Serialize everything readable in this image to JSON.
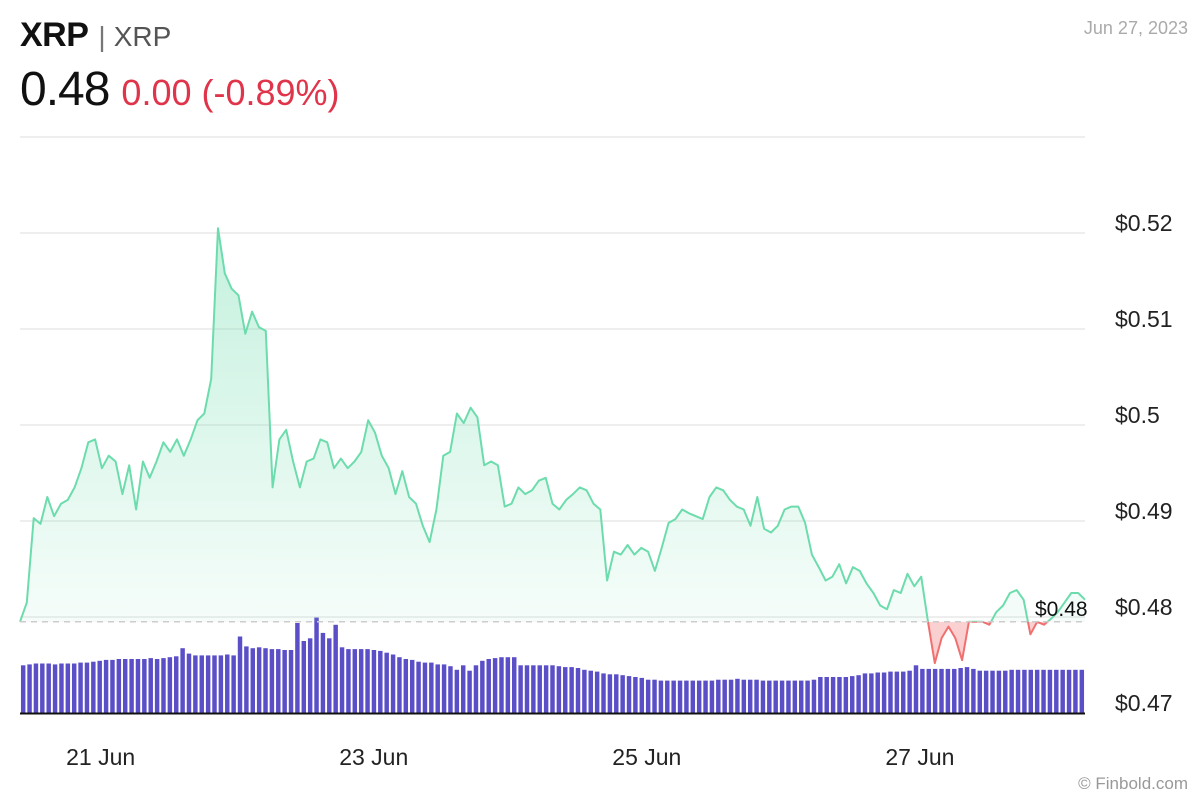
{
  "header": {
    "symbol": "XRP",
    "separator": "|",
    "name": "XRP",
    "price": "0.48",
    "change": "0.00 (-0.89%)",
    "date": "Jun 27, 2023"
  },
  "watermark": "© Finbold.com",
  "colors": {
    "up_line": "#6ddcad",
    "down_line": "#f07070",
    "volume": "#5b4fc8",
    "change_negative": "#e0344b",
    "grid": "#dddddd"
  },
  "chart_data": {
    "type": "line",
    "title": "",
    "xlabel": "",
    "ylabel": "",
    "ylim": [
      0.47,
      0.52
    ],
    "y_ticks": [
      "$0.47",
      "$0.48",
      "$0.49",
      "$0.5",
      "$0.51",
      "$0.52"
    ],
    "y_tick_values": [
      0.47,
      0.48,
      0.49,
      0.5,
      0.51,
      0.52
    ],
    "x_range_days": [
      20.55,
      28.0
    ],
    "x_ticks": [
      {
        "day": 20.8,
        "label": "21 Jun"
      },
      {
        "day": 22.8,
        "label": "23 Jun"
      },
      {
        "day": 24.8,
        "label": "25 Jun"
      },
      {
        "day": 26.8,
        "label": "27 Jun"
      }
    ],
    "reference_price": 0.4795,
    "reference_label": "$0.48",
    "series": [
      {
        "values": [
          [
            20.55,
            0.4795
          ],
          [
            20.6,
            0.4815
          ],
          [
            20.65,
            0.4903
          ],
          [
            20.7,
            0.4897
          ],
          [
            20.75,
            0.4925
          ],
          [
            20.8,
            0.4905
          ],
          [
            20.85,
            0.4918
          ],
          [
            20.9,
            0.4922
          ],
          [
            20.95,
            0.4935
          ],
          [
            21.0,
            0.4955
          ],
          [
            21.05,
            0.4982
          ],
          [
            21.1,
            0.4985
          ],
          [
            21.15,
            0.4955
          ],
          [
            21.2,
            0.4968
          ],
          [
            21.25,
            0.4962
          ],
          [
            21.3,
            0.4928
          ],
          [
            21.35,
            0.4958
          ],
          [
            21.4,
            0.4912
          ],
          [
            21.45,
            0.4962
          ],
          [
            21.5,
            0.4945
          ],
          [
            21.55,
            0.4962
          ],
          [
            21.6,
            0.4982
          ],
          [
            21.65,
            0.4972
          ],
          [
            21.7,
            0.4985
          ],
          [
            21.75,
            0.4968
          ],
          [
            21.8,
            0.4985
          ],
          [
            21.85,
            0.5005
          ],
          [
            21.9,
            0.5012
          ],
          [
            21.95,
            0.5048
          ],
          [
            22.0,
            0.5205
          ],
          [
            22.05,
            0.5158
          ],
          [
            22.1,
            0.5142
          ],
          [
            22.15,
            0.5135
          ],
          [
            22.2,
            0.5095
          ],
          [
            22.25,
            0.5118
          ],
          [
            22.3,
            0.5102
          ],
          [
            22.35,
            0.5098
          ],
          [
            22.4,
            0.4935
          ],
          [
            22.45,
            0.4985
          ],
          [
            22.5,
            0.4995
          ],
          [
            22.55,
            0.4962
          ],
          [
            22.6,
            0.4935
          ],
          [
            22.65,
            0.4962
          ],
          [
            22.7,
            0.4965
          ],
          [
            22.75,
            0.4985
          ],
          [
            22.8,
            0.4982
          ],
          [
            22.85,
            0.4955
          ],
          [
            22.9,
            0.4965
          ],
          [
            22.95,
            0.4955
          ],
          [
            23.0,
            0.4962
          ],
          [
            23.05,
            0.4972
          ],
          [
            23.1,
            0.5005
          ],
          [
            23.15,
            0.4992
          ],
          [
            23.2,
            0.4968
          ],
          [
            23.25,
            0.4955
          ],
          [
            23.3,
            0.4928
          ],
          [
            23.35,
            0.4952
          ],
          [
            23.4,
            0.4925
          ],
          [
            23.45,
            0.4918
          ],
          [
            23.5,
            0.4895
          ],
          [
            23.55,
            0.4878
          ],
          [
            23.6,
            0.4912
          ],
          [
            23.65,
            0.4968
          ],
          [
            23.7,
            0.4972
          ],
          [
            23.75,
            0.5012
          ],
          [
            23.8,
            0.5002
          ],
          [
            23.85,
            0.5018
          ],
          [
            23.9,
            0.5008
          ],
          [
            23.95,
            0.4958
          ],
          [
            24.0,
            0.4962
          ],
          [
            24.05,
            0.4958
          ],
          [
            24.1,
            0.4915
          ],
          [
            24.15,
            0.4918
          ],
          [
            24.2,
            0.4935
          ],
          [
            24.25,
            0.4928
          ],
          [
            24.3,
            0.4932
          ],
          [
            24.35,
            0.4942
          ],
          [
            24.4,
            0.4945
          ],
          [
            24.45,
            0.4918
          ],
          [
            24.5,
            0.4912
          ],
          [
            24.55,
            0.4922
          ],
          [
            24.6,
            0.4928
          ],
          [
            24.65,
            0.4935
          ],
          [
            24.7,
            0.4932
          ],
          [
            24.75,
            0.4918
          ],
          [
            24.8,
            0.4912
          ],
          [
            24.85,
            0.4838
          ],
          [
            24.9,
            0.4868
          ],
          [
            24.95,
            0.4865
          ],
          [
            25.0,
            0.4875
          ],
          [
            25.05,
            0.4865
          ],
          [
            25.1,
            0.4872
          ],
          [
            25.15,
            0.4868
          ],
          [
            25.2,
            0.4848
          ],
          [
            25.25,
            0.4872
          ],
          [
            25.3,
            0.4898
          ],
          [
            25.35,
            0.4902
          ],
          [
            25.4,
            0.4912
          ],
          [
            25.45,
            0.4908
          ],
          [
            25.5,
            0.4905
          ],
          [
            25.55,
            0.4902
          ],
          [
            25.6,
            0.4925
          ],
          [
            25.65,
            0.4935
          ],
          [
            25.7,
            0.4932
          ],
          [
            25.75,
            0.4922
          ],
          [
            25.8,
            0.4915
          ],
          [
            25.85,
            0.4912
          ],
          [
            25.9,
            0.4895
          ],
          [
            25.95,
            0.4925
          ],
          [
            26.0,
            0.4892
          ],
          [
            26.05,
            0.4888
          ],
          [
            26.1,
            0.4895
          ],
          [
            26.15,
            0.4912
          ],
          [
            26.2,
            0.4915
          ],
          [
            26.25,
            0.4915
          ],
          [
            26.3,
            0.4898
          ],
          [
            26.35,
            0.4865
          ],
          [
            26.4,
            0.4852
          ],
          [
            26.45,
            0.4838
          ],
          [
            26.5,
            0.4842
          ],
          [
            26.55,
            0.4855
          ],
          [
            26.6,
            0.4835
          ],
          [
            26.65,
            0.4852
          ],
          [
            26.7,
            0.4848
          ],
          [
            26.75,
            0.4835
          ],
          [
            26.8,
            0.4825
          ],
          [
            26.85,
            0.4812
          ],
          [
            26.9,
            0.4808
          ],
          [
            26.95,
            0.4828
          ],
          [
            27.0,
            0.4825
          ],
          [
            27.05,
            0.4845
          ],
          [
            27.1,
            0.4832
          ],
          [
            27.15,
            0.4842
          ],
          [
            27.2,
            0.4795
          ],
          [
            27.25,
            0.4752
          ],
          [
            27.3,
            0.4778
          ],
          [
            27.35,
            0.479
          ],
          [
            27.4,
            0.4778
          ],
          [
            27.45,
            0.4755
          ],
          [
            27.5,
            0.4795
          ],
          [
            27.55,
            0.4795
          ],
          [
            27.6,
            0.4795
          ],
          [
            27.65,
            0.4792
          ],
          [
            27.7,
            0.4805
          ],
          [
            27.75,
            0.4812
          ],
          [
            27.8,
            0.4825
          ],
          [
            27.85,
            0.4828
          ],
          [
            27.9,
            0.4818
          ],
          [
            27.95,
            0.4782
          ],
          [
            28.0,
            0.4795
          ],
          [
            28.05,
            0.4792
          ],
          [
            28.1,
            0.4798
          ],
          [
            28.15,
            0.4805
          ],
          [
            28.2,
            0.4815
          ],
          [
            28.25,
            0.4825
          ],
          [
            28.3,
            0.4825
          ],
          [
            28.35,
            0.4818
          ]
        ]
      }
    ],
    "volume_bars": [
      0.53,
      0.54,
      0.55,
      0.55,
      0.55,
      0.54,
      0.55,
      0.55,
      0.55,
      0.56,
      0.56,
      0.57,
      0.58,
      0.59,
      0.59,
      0.6,
      0.6,
      0.6,
      0.6,
      0.6,
      0.61,
      0.6,
      0.61,
      0.62,
      0.63,
      0.72,
      0.66,
      0.64,
      0.64,
      0.64,
      0.64,
      0.64,
      0.65,
      0.64,
      0.85,
      0.74,
      0.72,
      0.73,
      0.72,
      0.71,
      0.71,
      0.7,
      0.7,
      1.0,
      0.8,
      0.83,
      1.06,
      0.89,
      0.83,
      0.98,
      0.73,
      0.71,
      0.71,
      0.71,
      0.71,
      0.7,
      0.69,
      0.67,
      0.65,
      0.62,
      0.6,
      0.59,
      0.57,
      0.56,
      0.56,
      0.54,
      0.54,
      0.52,
      0.48,
      0.53,
      0.47,
      0.53,
      0.58,
      0.6,
      0.61,
      0.62,
      0.62,
      0.62,
      0.53,
      0.53,
      0.53,
      0.53,
      0.53,
      0.53,
      0.52,
      0.51,
      0.51,
      0.5,
      0.48,
      0.47,
      0.46,
      0.44,
      0.43,
      0.43,
      0.42,
      0.41,
      0.4,
      0.39,
      0.37,
      0.37,
      0.36,
      0.36,
      0.36,
      0.36,
      0.36,
      0.36,
      0.36,
      0.36,
      0.36,
      0.37,
      0.37,
      0.37,
      0.38,
      0.37,
      0.37,
      0.37,
      0.36,
      0.36,
      0.36,
      0.36,
      0.36,
      0.36,
      0.36,
      0.36,
      0.37,
      0.4,
      0.4,
      0.4,
      0.4,
      0.4,
      0.41,
      0.42,
      0.44,
      0.44,
      0.45,
      0.45,
      0.46,
      0.46,
      0.46,
      0.47,
      0.53,
      0.49,
      0.49,
      0.49,
      0.49,
      0.49,
      0.49,
      0.5,
      0.51,
      0.49,
      0.47,
      0.47,
      0.47,
      0.47,
      0.47,
      0.48,
      0.48,
      0.48,
      0.48,
      0.48,
      0.48,
      0.48,
      0.48,
      0.48,
      0.48,
      0.48,
      0.48
    ]
  }
}
